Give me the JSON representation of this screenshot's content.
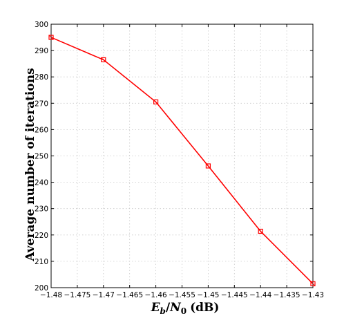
{
  "chart_data": {
    "type": "line",
    "xlabel": "E_b/N_0 (dB)",
    "ylabel": "Average number of iterations",
    "xlim": [
      -1.48,
      -1.43
    ],
    "ylim": [
      200,
      300
    ],
    "grid": true,
    "xticks": [
      "−1.48",
      "−1.475",
      "−1.47",
      "−1.465",
      "−1.46",
      "−1.455",
      "−1.45",
      "−1.445",
      "−1.44",
      "−1.435",
      "−1.43"
    ],
    "yticks": [
      "200",
      "210",
      "220",
      "230",
      "240",
      "250",
      "260",
      "270",
      "280",
      "290",
      "300"
    ],
    "series": [
      {
        "color": "#ff0000",
        "marker": "square",
        "x": [
          -1.48,
          -1.47,
          -1.46,
          -1.45,
          -1.44,
          -1.43
        ],
        "y": [
          295.0,
          286.5,
          270.5,
          246.2,
          221.4,
          201.5
        ]
      }
    ]
  },
  "xlabel_parts": {
    "e": "E",
    "b": "b",
    "slash": "/",
    "n": "N",
    "zero": "0",
    "unit": "(dB)"
  }
}
